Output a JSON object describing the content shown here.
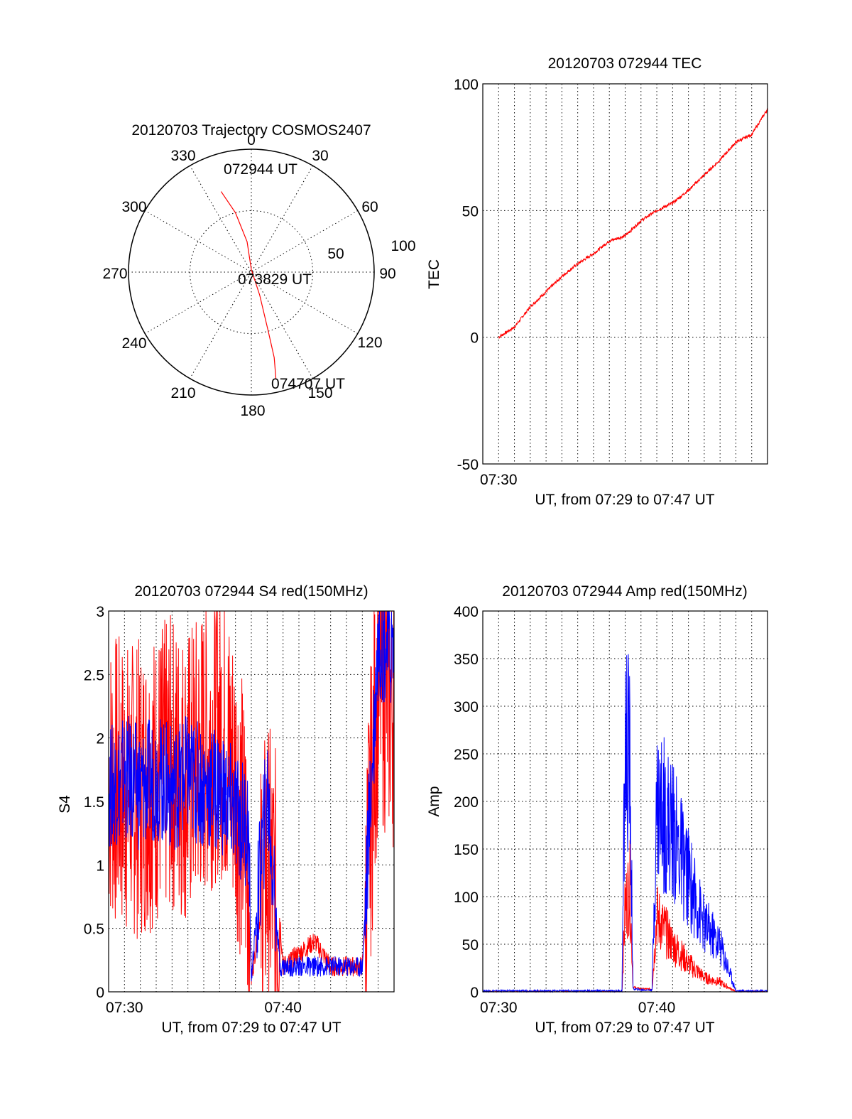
{
  "colors": {
    "red": "#ff0000",
    "blue": "#0000ff",
    "axis": "#000000"
  },
  "chart_data": [
    {
      "id": "trajectory",
      "type": "polar",
      "title": "20120703 Trajectory COSMOS2407",
      "angle_labels": [
        "0",
        "30",
        "60",
        "90",
        "120",
        "150",
        "180",
        "210",
        "240",
        "270",
        "300",
        "330"
      ],
      "radial_labels": [
        "50",
        "100"
      ],
      "rlim": [
        0,
        100
      ],
      "grid": true,
      "series": [
        {
          "color": "red",
          "points": [
            [
              -20.6,
              70
            ],
            [
              -15,
              50
            ],
            [
              -8,
              25
            ],
            [
              0,
              2
            ],
            [
              160,
              20
            ],
            [
              164,
              50
            ],
            [
              165,
              72
            ],
            [
              167,
              89
            ]
          ]
        }
      ],
      "annotations": [
        {
          "text": "072944 UT",
          "angle": -11,
          "r": 83
        },
        {
          "text": "073829 UT",
          "angle": 120,
          "r": 10
        },
        {
          "text": "074707 UT",
          "angle": 153,
          "r": 92
        }
      ]
    },
    {
      "id": "tec",
      "type": "line",
      "title": "20120703 072944 TEC",
      "xlabel": "UT, from 07:29 to 07:47 UT",
      "ylabel": "TEC",
      "xlim": [
        "07:29",
        "07:47"
      ],
      "ylim": [
        -50,
        100
      ],
      "yticks": [
        -50,
        0,
        50,
        100
      ],
      "xticks": [
        "07:30"
      ],
      "grid": true,
      "series": [
        {
          "color": "red",
          "x": [
            "07:30",
            "07:31",
            "07:32",
            "07:33",
            "07:34",
            "07:35",
            "07:36",
            "07:37",
            "07:38",
            "07:39",
            "07:40",
            "07:41",
            "07:42",
            "07:43",
            "07:44",
            "07:45",
            "07:46",
            "07:47"
          ],
          "y": [
            0,
            4,
            12,
            18,
            24,
            29,
            33,
            38,
            40,
            46,
            50,
            53,
            58,
            64,
            70,
            77,
            80,
            90
          ]
        }
      ]
    },
    {
      "id": "s4",
      "type": "line",
      "title": "20120703 072944 S4 red(150MHz)",
      "xlabel": "UT, from 07:29 to 07:47 UT",
      "ylabel": "S4",
      "xlim": [
        "07:29",
        "07:47"
      ],
      "ylim": [
        0,
        3
      ],
      "yticks": [
        "0",
        "0.5",
        "1",
        "1.5",
        "2",
        "2.5",
        "3"
      ],
      "xticks": [
        "07:30",
        "07:40"
      ],
      "grid": true,
      "series": [
        {
          "color": "red",
          "x": [
            "07:29",
            "07:30",
            "07:31",
            "07:32",
            "07:33",
            "07:34",
            "07:35",
            "07:36",
            "07:37",
            "07:37.8",
            "07:38",
            "07:39",
            "07:39.8",
            "07:40",
            "07:41",
            "07:42",
            "07:43",
            "07:44",
            "07:45",
            "07:46",
            "07:47"
          ],
          "y": [
            1.7,
            1.6,
            1.6,
            1.7,
            1.8,
            1.7,
            1.9,
            2.1,
            1.7,
            1.0,
            0.1,
            1.0,
            0.6,
            0.2,
            0.3,
            0.4,
            0.2,
            0.2,
            0.2,
            2.5,
            2.3
          ]
        },
        {
          "color": "blue",
          "x": [
            "07:29",
            "07:30",
            "07:31",
            "07:32",
            "07:33",
            "07:34",
            "07:35",
            "07:36",
            "07:37",
            "07:37.8",
            "07:38",
            "07:39",
            "07:39.8",
            "07:40",
            "07:41",
            "07:42",
            "07:43",
            "07:44",
            "07:45",
            "07:46",
            "07:47"
          ],
          "y": [
            1.6,
            1.7,
            1.6,
            1.7,
            1.6,
            1.7,
            1.6,
            1.6,
            1.4,
            1.3,
            0.1,
            1.6,
            0.2,
            0.2,
            0.2,
            0.2,
            0.2,
            0.2,
            0.2,
            2.8,
            2.7
          ]
        }
      ]
    },
    {
      "id": "amp",
      "type": "line",
      "title": "20120703 072944 Amp red(150MHz)",
      "xlabel": "UT, from 07:29 to 07:47 UT",
      "ylabel": "Amp",
      "xlim": [
        "07:29",
        "07:47"
      ],
      "ylim": [
        0,
        400
      ],
      "yticks": [
        "0",
        "50",
        "100",
        "150",
        "200",
        "250",
        "300",
        "350",
        "400"
      ],
      "xticks": [
        "07:30",
        "07:40"
      ],
      "grid": true,
      "series": [
        {
          "color": "red",
          "x": [
            "07:29",
            "07:37.8",
            "07:38",
            "07:38.3",
            "07:38.5",
            "07:39",
            "07:39.7",
            "07:40",
            "07:41",
            "07:42",
            "07:43",
            "07:44",
            "07:45",
            "07:46",
            "07:47"
          ],
          "y": [
            0,
            0,
            90,
            110,
            5,
            3,
            3,
            80,
            50,
            30,
            15,
            10,
            0,
            0,
            0
          ]
        },
        {
          "color": "blue",
          "x": [
            "07:29",
            "07:37.8",
            "07:38",
            "07:38.3",
            "07:38.5",
            "07:39",
            "07:39.7",
            "07:40",
            "07:41",
            "07:42",
            "07:43",
            "07:44",
            "07:45",
            "07:46",
            "07:47"
          ],
          "y": [
            1,
            1,
            260,
            240,
            3,
            2,
            2,
            200,
            170,
            120,
            70,
            50,
            1,
            1,
            1
          ]
        }
      ]
    }
  ]
}
